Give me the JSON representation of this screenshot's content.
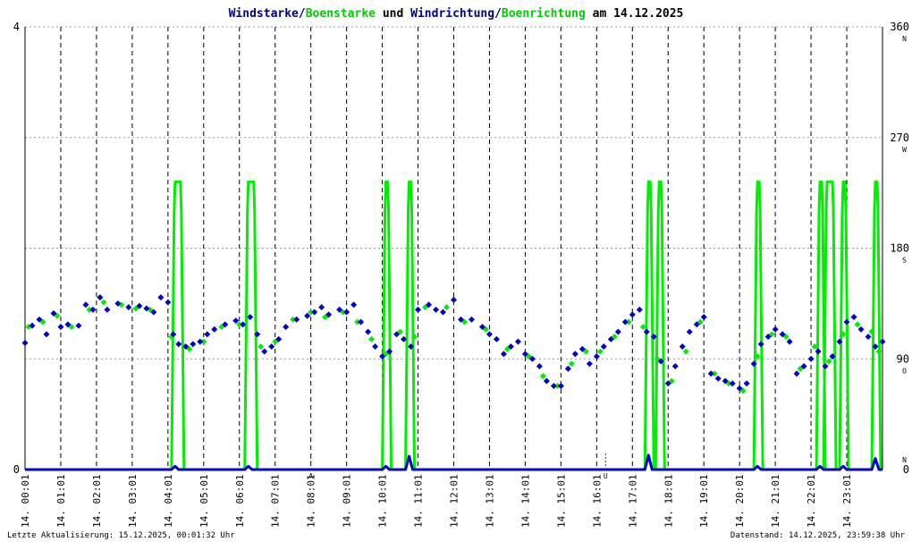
{
  "title": {
    "part1": "Windstarke",
    "sep1": "/",
    "part2": "Boenstarke",
    "mid": " und ",
    "part3": "Windrichtung",
    "sep2": "/",
    "part4": "Boenrichtung",
    "tail": " am 14.12.2025"
  },
  "colors": {
    "wind": "#0000cc",
    "gust": "#00ee00",
    "background": "#ffffff",
    "grid": "#000000",
    "title": "#000080"
  },
  "footer": {
    "left": "Letzte Aktualisierung: 15.12.2025, 00:01:32 Uhr",
    "right": "Datenstand: 14.12.2025, 23:59:38 Uhr"
  },
  "chart_data": {
    "type": "line",
    "date_label": "14.",
    "x_tick_labels": [
      "00:01",
      "01:01",
      "02:01",
      "03:01",
      "04:01",
      "05:01",
      "06:01",
      "07:01",
      "08:01",
      "09:01",
      "10:01",
      "11:01",
      "12:01",
      "13:01",
      "14:01",
      "15:01",
      "16:01",
      "17:01",
      "18:01",
      "19:01",
      "20:01",
      "21:01",
      "22:01",
      "23:01"
    ],
    "left_axis": {
      "min": 0,
      "max": 4,
      "tick_labels": [
        "0",
        "4"
      ]
    },
    "right_axis": {
      "min": 0,
      "max": 360,
      "tick_labels": [
        "0",
        "90",
        "180",
        "270",
        "360"
      ],
      "compass_labels": [
        "N",
        "O",
        "S",
        "W",
        "N"
      ]
    },
    "markers": [
      {
        "hour": 8.0,
        "label": "A"
      },
      {
        "hour": 16.25,
        "label": "U"
      }
    ],
    "series": [
      {
        "name": "Boenstarke",
        "kind": "speed",
        "spikes": [
          {
            "start": 4.2,
            "end": 4.35,
            "value": 2.6
          },
          {
            "start": 6.25,
            "end": 6.4,
            "value": 2.6
          },
          {
            "start": 10.1,
            "end": 10.15,
            "value": 2.6
          },
          {
            "start": 10.75,
            "end": 10.8,
            "value": 2.6
          },
          {
            "start": 17.45,
            "end": 17.5,
            "value": 2.6
          },
          {
            "start": 17.75,
            "end": 17.8,
            "value": 2.6
          },
          {
            "start": 20.5,
            "end": 20.55,
            "value": 2.6
          },
          {
            "start": 22.25,
            "end": 22.3,
            "value": 2.6
          },
          {
            "start": 22.45,
            "end": 22.6,
            "value": 2.6
          },
          {
            "start": 22.9,
            "end": 22.95,
            "value": 2.6
          },
          {
            "start": 23.8,
            "end": 23.85,
            "value": 2.6
          }
        ]
      },
      {
        "name": "Windstarke",
        "kind": "speed",
        "bumps": [
          {
            "hour": 4.2,
            "value": 0.03
          },
          {
            "hour": 6.25,
            "value": 0.03
          },
          {
            "hour": 10.1,
            "value": 0.03
          },
          {
            "hour": 10.75,
            "value": 0.12
          },
          {
            "hour": 17.45,
            "value": 0.13
          },
          {
            "hour": 20.5,
            "value": 0.03
          },
          {
            "hour": 22.25,
            "value": 0.03
          },
          {
            "hour": 22.9,
            "value": 0.03
          },
          {
            "hour": 23.8,
            "value": 0.1
          }
        ]
      },
      {
        "name": "Windrichtung",
        "kind": "direction",
        "points": [
          [
            0.0,
            103
          ],
          [
            0.2,
            117
          ],
          [
            0.4,
            122
          ],
          [
            0.6,
            110
          ],
          [
            0.8,
            127
          ],
          [
            1.0,
            116
          ],
          [
            1.2,
            118
          ],
          [
            1.5,
            117
          ],
          [
            1.7,
            134
          ],
          [
            1.9,
            130
          ],
          [
            2.1,
            140
          ],
          [
            2.3,
            130
          ],
          [
            2.6,
            135
          ],
          [
            2.9,
            132
          ],
          [
            3.2,
            133
          ],
          [
            3.4,
            131
          ],
          [
            3.6,
            128
          ],
          [
            3.8,
            140
          ],
          [
            4.0,
            136
          ],
          [
            4.15,
            110
          ],
          [
            4.3,
            102
          ],
          [
            4.5,
            100
          ],
          [
            4.7,
            102
          ],
          [
            4.9,
            104
          ],
          [
            5.1,
            110
          ],
          [
            5.3,
            114
          ],
          [
            5.6,
            118
          ],
          [
            5.9,
            121
          ],
          [
            6.1,
            118
          ],
          [
            6.3,
            124
          ],
          [
            6.5,
            110
          ],
          [
            6.7,
            96
          ],
          [
            6.9,
            100
          ],
          [
            7.1,
            106
          ],
          [
            7.3,
            116
          ],
          [
            7.6,
            122
          ],
          [
            7.9,
            125
          ],
          [
            8.1,
            128
          ],
          [
            8.3,
            132
          ],
          [
            8.5,
            126
          ],
          [
            8.8,
            130
          ],
          [
            9.0,
            128
          ],
          [
            9.2,
            134
          ],
          [
            9.4,
            120
          ],
          [
            9.6,
            112
          ],
          [
            9.8,
            100
          ],
          [
            10.0,
            92
          ],
          [
            10.2,
            96
          ],
          [
            10.4,
            110
          ],
          [
            10.6,
            106
          ],
          [
            10.8,
            100
          ],
          [
            11.0,
            130
          ],
          [
            11.3,
            134
          ],
          [
            11.5,
            130
          ],
          [
            11.7,
            128
          ],
          [
            12.0,
            138
          ],
          [
            12.2,
            122
          ],
          [
            12.5,
            122
          ],
          [
            12.8,
            116
          ],
          [
            13.0,
            110
          ],
          [
            13.2,
            106
          ],
          [
            13.4,
            94
          ],
          [
            13.6,
            100
          ],
          [
            13.8,
            104
          ],
          [
            14.0,
            94
          ],
          [
            14.2,
            90
          ],
          [
            14.4,
            84
          ],
          [
            14.6,
            72
          ],
          [
            14.8,
            68
          ],
          [
            15.0,
            68
          ],
          [
            15.2,
            82
          ],
          [
            15.4,
            94
          ],
          [
            15.6,
            98
          ],
          [
            15.8,
            86
          ],
          [
            16.0,
            92
          ],
          [
            16.2,
            100
          ],
          [
            16.4,
            106
          ],
          [
            16.6,
            112
          ],
          [
            16.8,
            120
          ],
          [
            17.0,
            126
          ],
          [
            17.2,
            130
          ],
          [
            17.4,
            112
          ],
          [
            17.6,
            108
          ],
          [
            17.8,
            88
          ],
          [
            18.0,
            70
          ],
          [
            18.2,
            84
          ],
          [
            18.4,
            100
          ],
          [
            18.6,
            112
          ],
          [
            18.8,
            118
          ],
          [
            19.0,
            124
          ],
          [
            19.2,
            78
          ],
          [
            19.4,
            74
          ],
          [
            19.6,
            72
          ],
          [
            19.8,
            70
          ],
          [
            20.0,
            66
          ],
          [
            20.2,
            70
          ],
          [
            20.4,
            86
          ],
          [
            20.6,
            102
          ],
          [
            20.8,
            108
          ],
          [
            21.0,
            114
          ],
          [
            21.2,
            110
          ],
          [
            21.4,
            104
          ],
          [
            21.6,
            78
          ],
          [
            21.8,
            84
          ],
          [
            22.0,
            90
          ],
          [
            22.2,
            96
          ],
          [
            22.4,
            84
          ],
          [
            22.6,
            92
          ],
          [
            22.8,
            104
          ],
          [
            23.0,
            120
          ],
          [
            23.2,
            124
          ],
          [
            23.4,
            114
          ],
          [
            23.6,
            108
          ],
          [
            23.8,
            100
          ],
          [
            24.0,
            104
          ]
        ]
      },
      {
        "name": "Boenrichtung",
        "kind": "direction",
        "points": [
          [
            0.1,
            116
          ],
          [
            0.5,
            120
          ],
          [
            0.9,
            125
          ],
          [
            1.3,
            116
          ],
          [
            1.8,
            130
          ],
          [
            2.2,
            136
          ],
          [
            2.7,
            134
          ],
          [
            3.1,
            131
          ],
          [
            3.5,
            130
          ],
          [
            4.1,
            108
          ],
          [
            4.6,
            98
          ],
          [
            5.0,
            104
          ],
          [
            5.5,
            116
          ],
          [
            6.0,
            118
          ],
          [
            6.6,
            100
          ],
          [
            7.0,
            104
          ],
          [
            7.5,
            122
          ],
          [
            8.0,
            128
          ],
          [
            8.4,
            124
          ],
          [
            8.9,
            128
          ],
          [
            9.3,
            120
          ],
          [
            9.7,
            106
          ],
          [
            10.1,
            94
          ],
          [
            10.5,
            112
          ],
          [
            10.9,
            108
          ],
          [
            11.2,
            132
          ],
          [
            11.8,
            132
          ],
          [
            12.3,
            120
          ],
          [
            12.9,
            114
          ],
          [
            13.5,
            98
          ],
          [
            14.1,
            92
          ],
          [
            14.5,
            76
          ],
          [
            14.9,
            68
          ],
          [
            15.3,
            86
          ],
          [
            15.7,
            96
          ],
          [
            16.1,
            96
          ],
          [
            16.5,
            108
          ],
          [
            16.9,
            120
          ],
          [
            17.3,
            116
          ],
          [
            17.7,
            90
          ],
          [
            18.1,
            72
          ],
          [
            18.5,
            96
          ],
          [
            18.9,
            120
          ],
          [
            19.3,
            78
          ],
          [
            19.7,
            70
          ],
          [
            20.1,
            64
          ],
          [
            20.5,
            92
          ],
          [
            20.9,
            110
          ],
          [
            21.3,
            108
          ],
          [
            21.7,
            82
          ],
          [
            22.1,
            100
          ],
          [
            22.5,
            88
          ],
          [
            22.9,
            110
          ],
          [
            23.3,
            118
          ],
          [
            23.7,
            112
          ],
          [
            23.9,
            96
          ]
        ]
      }
    ]
  }
}
